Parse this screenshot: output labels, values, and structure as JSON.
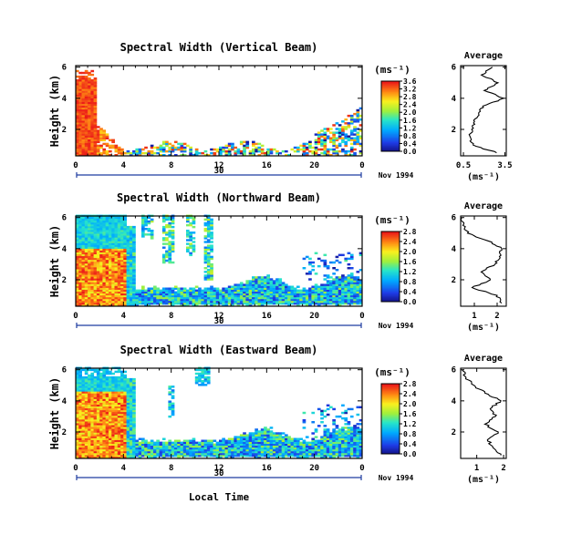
{
  "xlabel": "Local Time",
  "chart_data": [
    {
      "type": "heatmap",
      "title": "Spectral Width (Vertical Beam)",
      "ylabel": "Height (km)",
      "unit": "(ms⁻¹)",
      "x_ticks": [
        "0",
        "4",
        "8",
        "12",
        "16",
        "20",
        "0"
      ],
      "y_ticks": [
        "2",
        "4",
        "6"
      ],
      "day_label": "30",
      "date_label": "Nov 1994",
      "xlim": [
        0,
        24
      ],
      "ylim": [
        0.3,
        6.1
      ],
      "colorbar_ticks": [
        "0.0",
        "0.4",
        "0.8",
        "1.2",
        "1.6",
        "2.0",
        "2.4",
        "2.8",
        "3.2",
        "3.6"
      ],
      "colorbar_range": [
        0,
        3.6
      ],
      "profile": {
        "title": "Average",
        "xlabel": "(ms⁻¹)",
        "x_ticks": [
          "0.5",
          "3.5"
        ],
        "x_tick_values": [
          0.5,
          3.5
        ],
        "xlim": [
          0.3,
          3.6
        ],
        "y_ticks": [
          "2",
          "4",
          "6"
        ],
        "heights": [
          0.5,
          1.0,
          1.5,
          2.0,
          2.5,
          3.0,
          3.5,
          4.0,
          4.5,
          5.0,
          5.5,
          6.0
        ],
        "values": [
          2.9,
          1.2,
          1.0,
          1.1,
          1.3,
          1.6,
          1.9,
          3.4,
          2.0,
          3.0,
          1.8,
          2.6
        ]
      }
    },
    {
      "type": "heatmap",
      "title": "Spectral Width (Northward Beam)",
      "ylabel": "Height (km)",
      "unit": "(ms⁻¹)",
      "x_ticks": [
        "0",
        "4",
        "8",
        "12",
        "16",
        "20",
        "0"
      ],
      "y_ticks": [
        "2",
        "4",
        "6"
      ],
      "day_label": "30",
      "date_label": "Nov 1994",
      "xlim": [
        0,
        24
      ],
      "ylim": [
        0.3,
        6.1
      ],
      "colorbar_ticks": [
        "0.0",
        "0.4",
        "0.8",
        "1.2",
        "1.6",
        "2.0",
        "2.4",
        "2.8"
      ],
      "colorbar_range": [
        0,
        2.8
      ],
      "profile": {
        "title": "Average",
        "xlabel": "(ms⁻¹)",
        "x_ticks": [
          "1",
          "2"
        ],
        "x_tick_values": [
          1,
          2
        ],
        "xlim": [
          0.4,
          2.4
        ],
        "y_ticks": [
          "2",
          "4",
          "6"
        ],
        "heights": [
          0.5,
          1.0,
          1.5,
          2.0,
          2.5,
          3.0,
          3.5,
          4.0,
          4.5,
          5.0,
          5.5,
          6.0
        ],
        "values": [
          2.2,
          2.0,
          0.9,
          1.7,
          1.3,
          1.9,
          2.1,
          2.2,
          1.6,
          0.7,
          0.5,
          0.45
        ]
      }
    },
    {
      "type": "heatmap",
      "title": "Spectral Width (Eastward Beam)",
      "ylabel": "Height (km)",
      "unit": "(ms⁻¹)",
      "x_ticks": [
        "0",
        "4",
        "8",
        "12",
        "16",
        "20",
        "0"
      ],
      "y_ticks": [
        "2",
        "4",
        "6"
      ],
      "day_label": "30",
      "date_label": "Nov 1994",
      "xlim": [
        0,
        24
      ],
      "ylim": [
        0.3,
        6.1
      ],
      "colorbar_ticks": [
        "0.0",
        "0.4",
        "0.8",
        "1.2",
        "1.6",
        "2.0",
        "2.4",
        "2.8"
      ],
      "colorbar_range": [
        0,
        2.8
      ],
      "profile": {
        "title": "Average",
        "xlabel": "(ms⁻¹)",
        "x_ticks": [
          "1",
          "2"
        ],
        "x_tick_values": [
          1,
          2
        ],
        "xlim": [
          0.4,
          2.1
        ],
        "y_ticks": [
          "2",
          "4",
          "6"
        ],
        "heights": [
          0.5,
          1.0,
          1.5,
          2.0,
          2.5,
          3.0,
          3.5,
          4.0,
          4.5,
          5.0,
          5.5,
          6.0
        ],
        "values": [
          1.9,
          1.6,
          1.4,
          1.8,
          1.3,
          1.7,
          1.5,
          1.9,
          1.3,
          0.9,
          0.6,
          0.45
        ]
      }
    }
  ]
}
